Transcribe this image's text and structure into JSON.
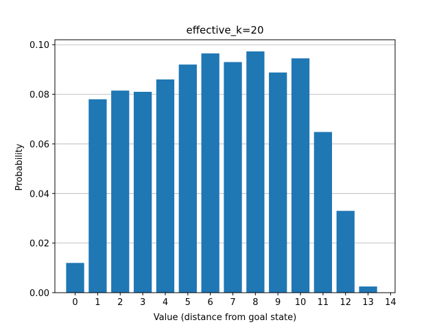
{
  "chart_data": {
    "type": "bar",
    "title": "effective_k=20",
    "xlabel": "Value (distance from goal state)",
    "ylabel": "Probability",
    "categories": [
      0,
      1,
      2,
      3,
      4,
      5,
      6,
      7,
      8,
      9,
      10,
      11,
      12,
      13
    ],
    "values": [
      0.012,
      0.078,
      0.0815,
      0.081,
      0.086,
      0.092,
      0.0965,
      0.093,
      0.0973,
      0.0888,
      0.0945,
      0.0648,
      0.033,
      0.0025
    ],
    "x_ticks": [
      0,
      1,
      2,
      3,
      4,
      5,
      6,
      7,
      8,
      9,
      10,
      11,
      12,
      13,
      14
    ],
    "y_ticks": [
      0.0,
      0.02,
      0.04,
      0.06,
      0.08,
      0.1
    ],
    "y_tick_labels": [
      "0.00",
      "0.02",
      "0.04",
      "0.06",
      "0.08",
      "0.10"
    ],
    "xlim": [
      -0.9,
      14.2
    ],
    "ylim": [
      0,
      0.102
    ],
    "grid": "horizontal",
    "bar_color": "#1f77b4",
    "grid_color": "#b0b0b0"
  }
}
